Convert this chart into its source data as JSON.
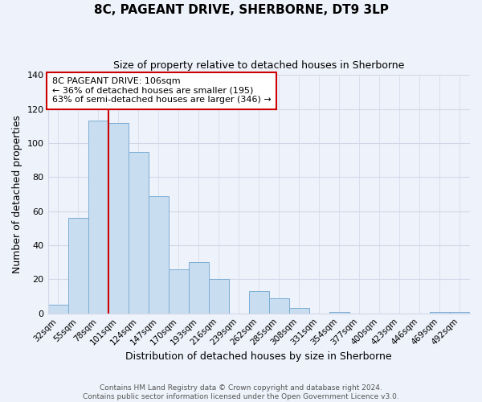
{
  "title": "8C, PAGEANT DRIVE, SHERBORNE, DT9 3LP",
  "subtitle": "Size of property relative to detached houses in Sherborne",
  "xlabel": "Distribution of detached houses by size in Sherborne",
  "ylabel": "Number of detached properties",
  "categories": [
    "32sqm",
    "55sqm",
    "78sqm",
    "101sqm",
    "124sqm",
    "147sqm",
    "170sqm",
    "193sqm",
    "216sqm",
    "239sqm",
    "262sqm",
    "285sqm",
    "308sqm",
    "331sqm",
    "354sqm",
    "377sqm",
    "400sqm",
    "423sqm",
    "446sqm",
    "469sqm",
    "492sqm"
  ],
  "values": [
    5,
    56,
    113,
    112,
    95,
    69,
    26,
    30,
    20,
    0,
    13,
    9,
    3,
    0,
    1,
    0,
    0,
    0,
    0,
    1,
    1
  ],
  "bar_color": "#c9ddf0",
  "bar_edge_color": "#7aadd4",
  "redline_index": 3,
  "annotation_title": "8C PAGEANT DRIVE: 106sqm",
  "annotation_line1": "← 36% of detached houses are smaller (195)",
  "annotation_line2": "63% of semi-detached houses are larger (346) →",
  "annotation_box_facecolor": "#ffffff",
  "annotation_box_edgecolor": "#cc0000",
  "redline_color": "#cc0000",
  "footer_line1": "Contains HM Land Registry data © Crown copyright and database right 2024.",
  "footer_line2": "Contains public sector information licensed under the Open Government Licence v3.0.",
  "ylim": [
    0,
    140
  ],
  "yticks": [
    0,
    20,
    40,
    60,
    80,
    100,
    120,
    140
  ],
  "background_color": "#eef2fa",
  "grid_color": "#d0d8e8",
  "title_fontsize": 11,
  "subtitle_fontsize": 9
}
